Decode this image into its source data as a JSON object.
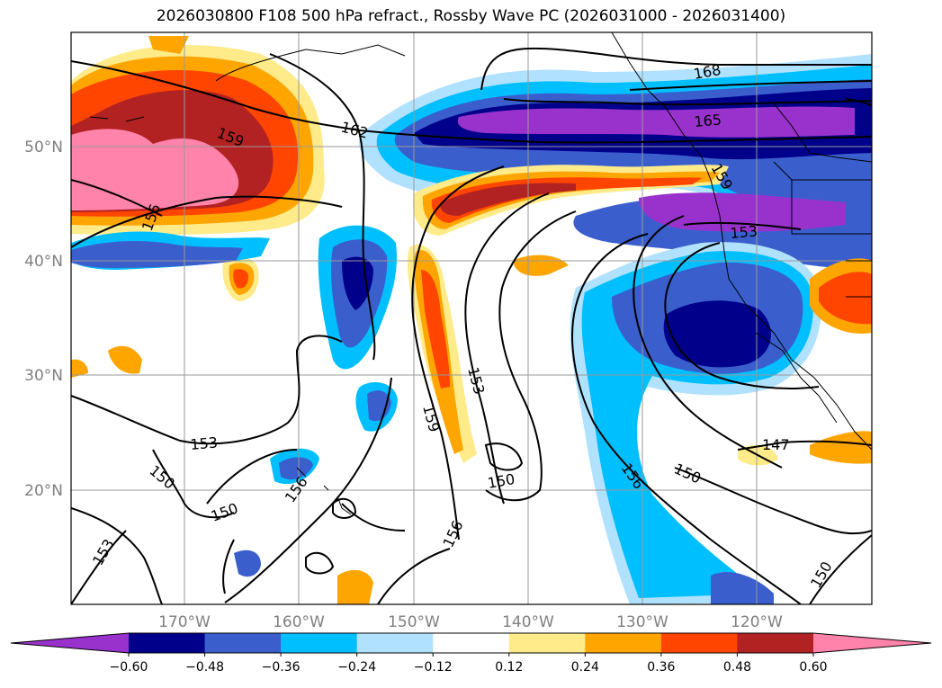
{
  "title": "2026030800 F108 500 hPa refract., Rossby Wave PC (2026031000 - 2026031400)",
  "lat_labels": [
    "50°N",
    "40°N",
    "30°N",
    "20°N"
  ],
  "lon_labels": [
    "170°W",
    "160°W",
    "150°W",
    "140°W",
    "130°W",
    "120°W"
  ],
  "contour_labels": [
    "168",
    "165",
    "162",
    "159",
    "159",
    "156",
    "156",
    "156",
    "156",
    "153",
    "153",
    "153",
    "153",
    "150",
    "150",
    "150",
    "150",
    "150",
    "147",
    "159"
  ],
  "colorbar": {
    "ticks": [
      "−0.60",
      "−0.48",
      "−0.36",
      "−0.24",
      "−0.12",
      "0.12",
      "0.24",
      "0.36",
      "0.48",
      "0.60"
    ],
    "colors": [
      "#9932cc",
      "#00008b",
      "#3a5fcd",
      "#00bfff",
      "#b0e2ff",
      "#ffffff",
      "#ffeb8a",
      "#ffa500",
      "#ff4500",
      "#b22222",
      "#ff83aa"
    ]
  },
  "legend_colors": {
    "violet": "#9932cc",
    "navy": "#00008b",
    "royal": "#3a5fcd",
    "sky": "#00bfff",
    "pale_blue": "#b0e2ff",
    "white": "#ffffff",
    "pale_yellow": "#ffeb8a",
    "orange": "#ffa500",
    "red_orange": "#ff4500",
    "firebrick": "#b22222",
    "pink": "#ff83aa"
  }
}
